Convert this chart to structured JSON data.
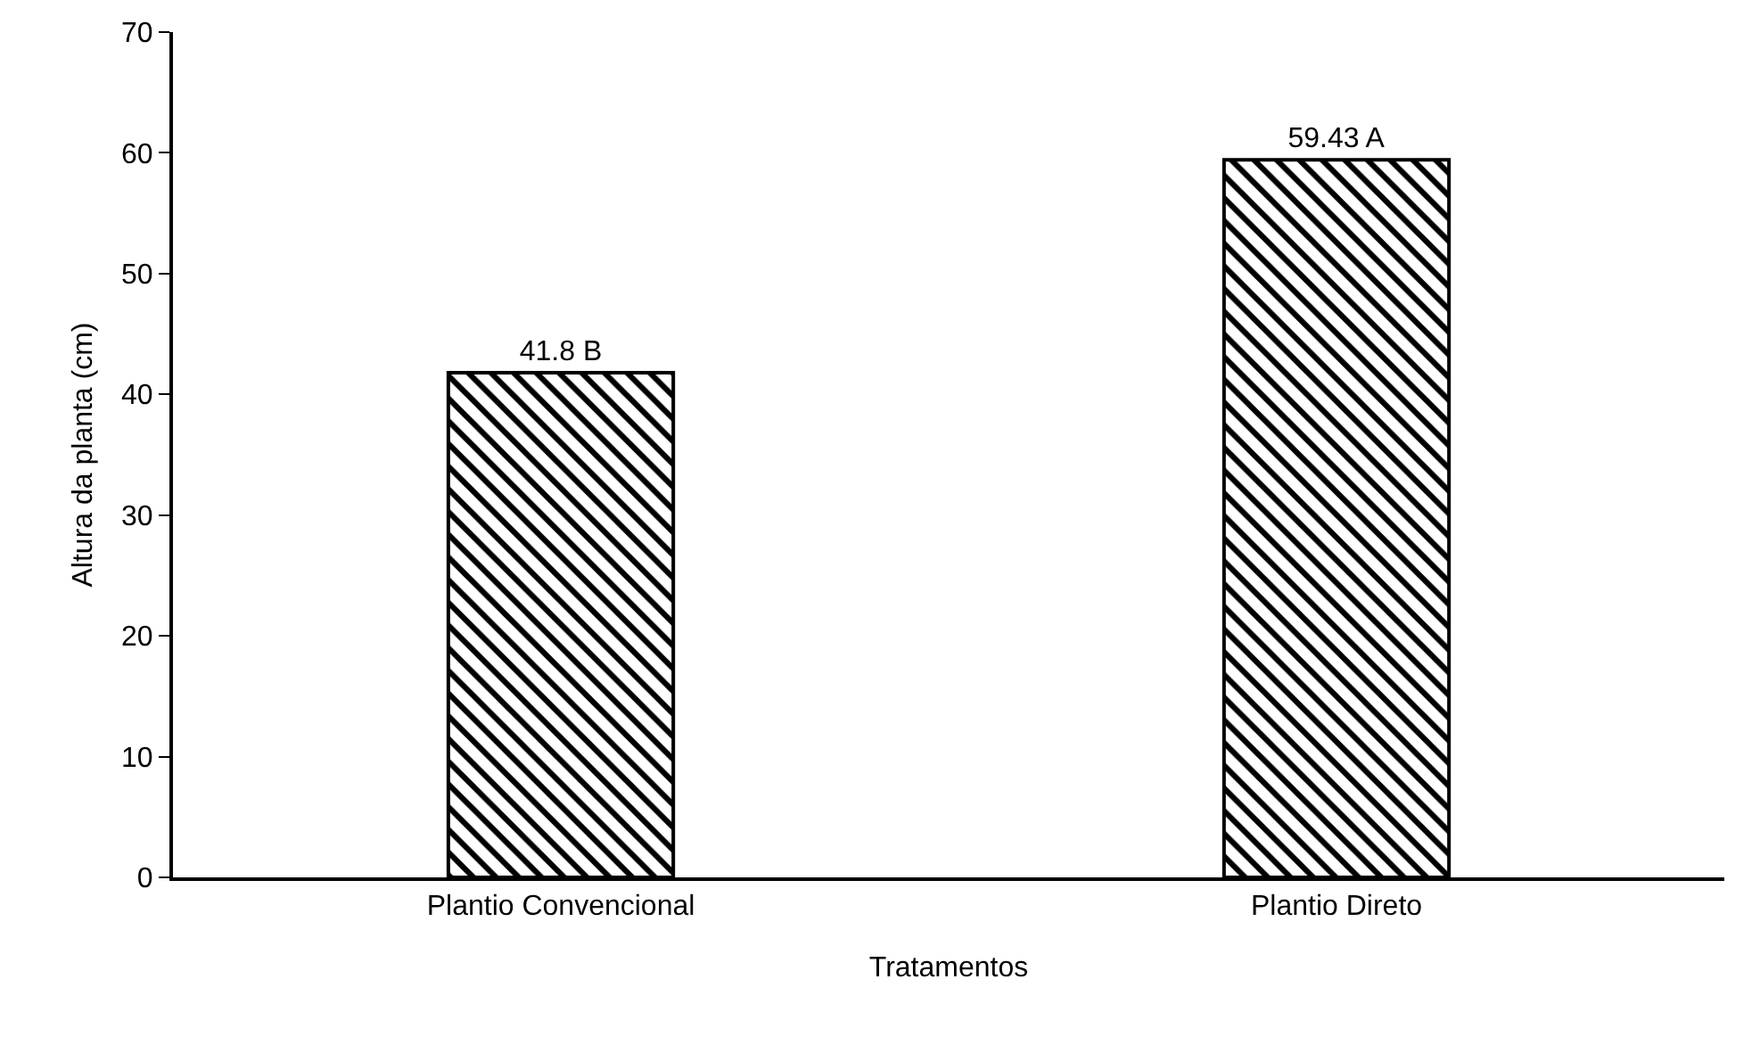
{
  "chart_data": {
    "type": "bar",
    "xlabel": "Tratamentos",
    "ylabel": "Altura da planta (cm)",
    "categories": [
      "Plantio Convencional",
      "Plantio Direto"
    ],
    "values": [
      41.8,
      59.43
    ],
    "value_labels": [
      "41.8 B",
      "59.43 A"
    ],
    "color": "#000000",
    "ylim": [
      0,
      70
    ],
    "yticks": [
      0,
      10,
      20,
      30,
      40,
      50,
      60,
      70
    ],
    "grid": false
  }
}
